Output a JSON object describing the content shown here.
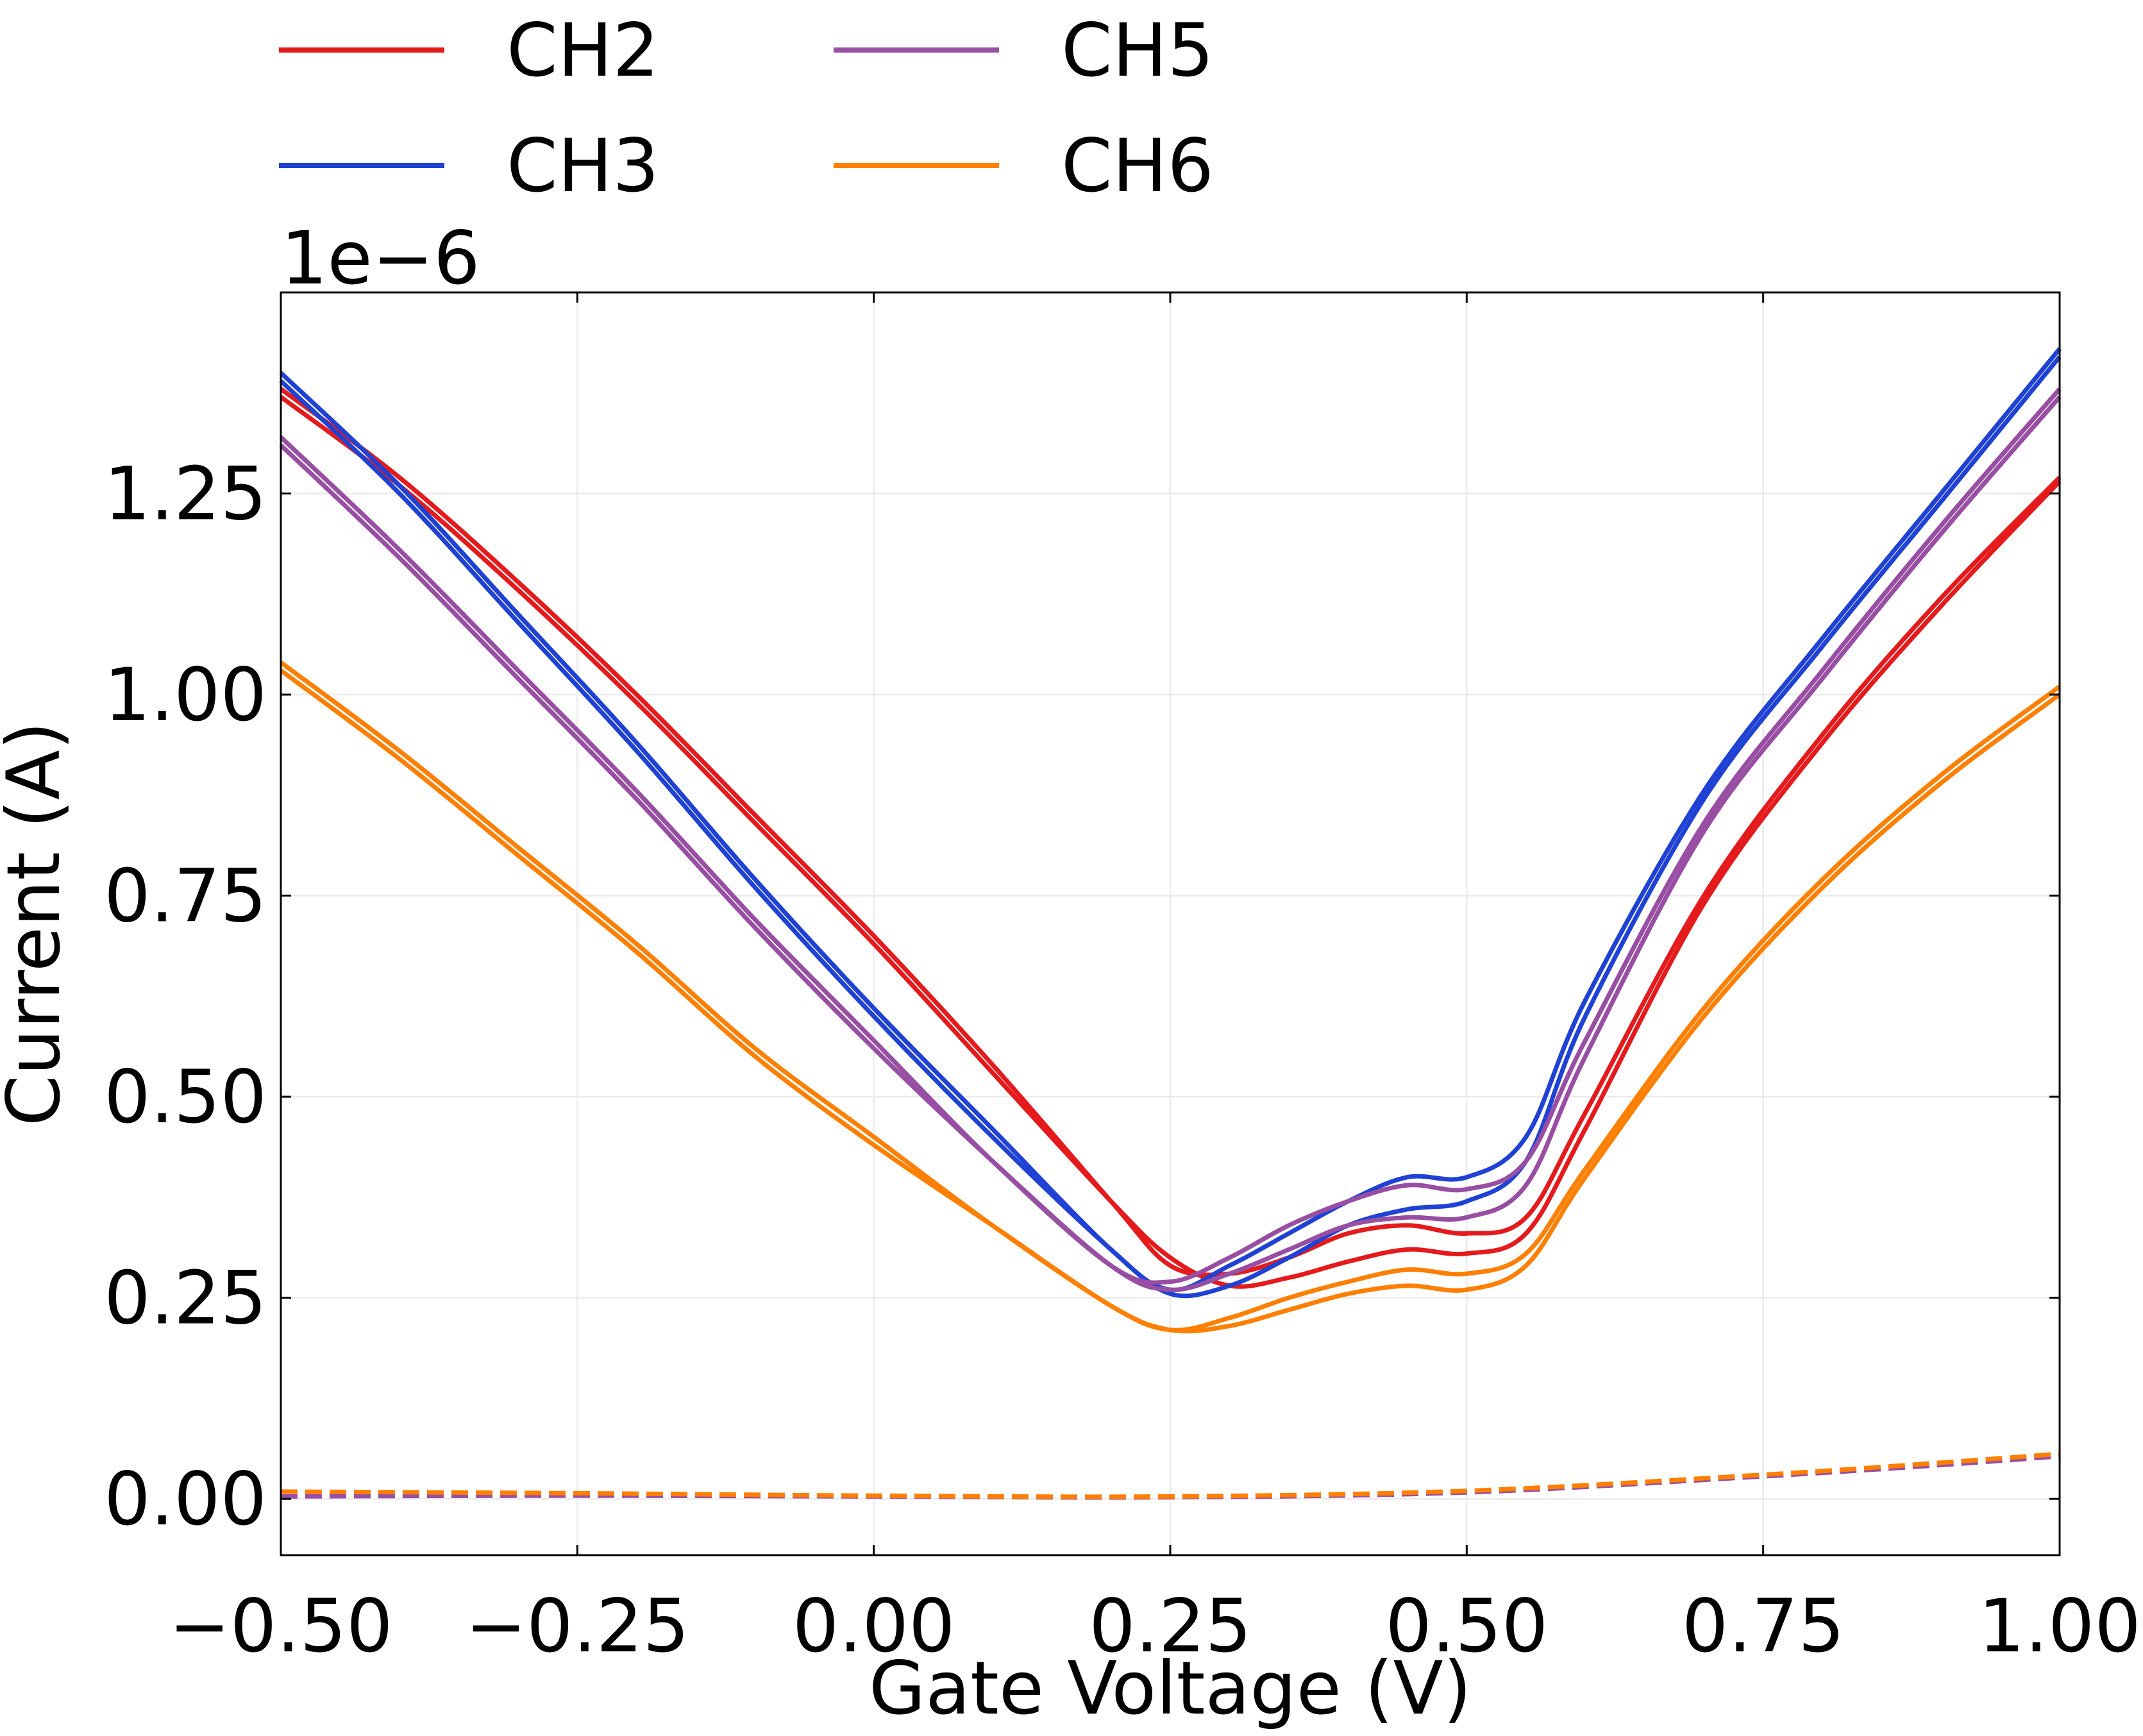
{
  "chart_data": {
    "type": "line",
    "title": "",
    "xlabel": "Gate Voltage (V)",
    "ylabel": "Current (A)",
    "y_offset_label": "1e−6",
    "xlim": [
      -0.5,
      1.0
    ],
    "ylim": [
      -0.07,
      1.5
    ],
    "x_ticks": [
      -0.5,
      -0.25,
      0.0,
      0.25,
      0.5,
      0.75,
      1.0
    ],
    "x_tick_labels": [
      "−0.50",
      "−0.25",
      "0.00",
      "0.25",
      "0.50",
      "0.75",
      "1.00"
    ],
    "y_ticks": [
      0.0,
      0.25,
      0.5,
      0.75,
      1.0,
      1.25
    ],
    "y_tick_labels": [
      "0.00",
      "0.25",
      "0.50",
      "0.75",
      "1.00",
      "1.25"
    ],
    "grid": true,
    "legend": {
      "placement": "top-left, above plot",
      "columns": 2,
      "entries": [
        "CH2",
        "CH3",
        "CH5",
        "CH6"
      ]
    },
    "series": [
      {
        "name": "CH2",
        "color": "#e41a1c",
        "forward": [
          [
            -0.5,
            1.37
          ],
          [
            -0.4,
            1.26
          ],
          [
            -0.3,
            1.13
          ],
          [
            -0.2,
            0.99
          ],
          [
            -0.1,
            0.84
          ],
          [
            0.0,
            0.69
          ],
          [
            0.1,
            0.53
          ],
          [
            0.2,
            0.37
          ],
          [
            0.25,
            0.3
          ],
          [
            0.3,
            0.265
          ],
          [
            0.35,
            0.275
          ],
          [
            0.4,
            0.295
          ],
          [
            0.45,
            0.31
          ],
          [
            0.5,
            0.305
          ],
          [
            0.55,
            0.33
          ],
          [
            0.6,
            0.46
          ],
          [
            0.7,
            0.74
          ],
          [
            0.8,
            0.94
          ],
          [
            0.9,
            1.11
          ],
          [
            1.0,
            1.265
          ]
        ],
        "reverse": [
          [
            -0.5,
            1.38
          ],
          [
            -0.4,
            1.27
          ],
          [
            -0.3,
            1.14
          ],
          [
            -0.2,
            1.0
          ],
          [
            -0.1,
            0.85
          ],
          [
            0.0,
            0.7
          ],
          [
            0.1,
            0.54
          ],
          [
            0.2,
            0.37
          ],
          [
            0.25,
            0.29
          ],
          [
            0.3,
            0.28
          ],
          [
            0.35,
            0.3
          ],
          [
            0.4,
            0.33
          ],
          [
            0.45,
            0.34
          ],
          [
            0.5,
            0.33
          ],
          [
            0.55,
            0.35
          ],
          [
            0.6,
            0.48
          ],
          [
            0.7,
            0.75
          ],
          [
            0.8,
            0.95
          ],
          [
            0.9,
            1.12
          ],
          [
            1.0,
            1.27
          ]
        ]
      },
      {
        "name": "CH3",
        "color": "#1f42d4",
        "forward": [
          [
            -0.5,
            1.39
          ],
          [
            -0.4,
            1.25
          ],
          [
            -0.3,
            1.09
          ],
          [
            -0.2,
            0.93
          ],
          [
            -0.1,
            0.76
          ],
          [
            0.0,
            0.6
          ],
          [
            0.1,
            0.45
          ],
          [
            0.2,
            0.31
          ],
          [
            0.25,
            0.255
          ],
          [
            0.3,
            0.265
          ],
          [
            0.35,
            0.3
          ],
          [
            0.4,
            0.34
          ],
          [
            0.45,
            0.36
          ],
          [
            0.5,
            0.37
          ],
          [
            0.55,
            0.42
          ],
          [
            0.6,
            0.6
          ],
          [
            0.7,
            0.87
          ],
          [
            0.8,
            1.06
          ],
          [
            0.9,
            1.24
          ],
          [
            1.0,
            1.42
          ]
        ],
        "reverse": [
          [
            -0.5,
            1.4
          ],
          [
            -0.4,
            1.26
          ],
          [
            -0.3,
            1.1
          ],
          [
            -0.2,
            0.94
          ],
          [
            -0.1,
            0.77
          ],
          [
            0.0,
            0.61
          ],
          [
            0.1,
            0.46
          ],
          [
            0.2,
            0.31
          ],
          [
            0.25,
            0.26
          ],
          [
            0.3,
            0.29
          ],
          [
            0.35,
            0.33
          ],
          [
            0.4,
            0.37
          ],
          [
            0.45,
            0.4
          ],
          [
            0.5,
            0.4
          ],
          [
            0.55,
            0.45
          ],
          [
            0.6,
            0.62
          ],
          [
            0.7,
            0.88
          ],
          [
            0.8,
            1.07
          ],
          [
            0.9,
            1.25
          ],
          [
            1.0,
            1.43
          ]
        ]
      },
      {
        "name": "CH5",
        "color": "#984ea3",
        "forward": [
          [
            -0.5,
            1.31
          ],
          [
            -0.4,
            1.17
          ],
          [
            -0.3,
            1.02
          ],
          [
            -0.2,
            0.87
          ],
          [
            -0.1,
            0.71
          ],
          [
            0.0,
            0.56
          ],
          [
            0.1,
            0.42
          ],
          [
            0.2,
            0.29
          ],
          [
            0.25,
            0.26
          ],
          [
            0.3,
            0.28
          ],
          [
            0.35,
            0.31
          ],
          [
            0.4,
            0.34
          ],
          [
            0.45,
            0.35
          ],
          [
            0.5,
            0.35
          ],
          [
            0.55,
            0.39
          ],
          [
            0.6,
            0.55
          ],
          [
            0.7,
            0.83
          ],
          [
            0.8,
            1.02
          ],
          [
            0.9,
            1.2
          ],
          [
            1.0,
            1.37
          ]
        ],
        "reverse": [
          [
            -0.5,
            1.32
          ],
          [
            -0.4,
            1.18
          ],
          [
            -0.3,
            1.03
          ],
          [
            -0.2,
            0.88
          ],
          [
            -0.1,
            0.72
          ],
          [
            0.0,
            0.57
          ],
          [
            0.1,
            0.42
          ],
          [
            0.2,
            0.29
          ],
          [
            0.25,
            0.27
          ],
          [
            0.3,
            0.3
          ],
          [
            0.35,
            0.34
          ],
          [
            0.4,
            0.37
          ],
          [
            0.45,
            0.39
          ],
          [
            0.5,
            0.385
          ],
          [
            0.55,
            0.42
          ],
          [
            0.6,
            0.57
          ],
          [
            0.7,
            0.84
          ],
          [
            0.8,
            1.03
          ],
          [
            0.9,
            1.21
          ],
          [
            1.0,
            1.38
          ]
        ]
      },
      {
        "name": "CH6",
        "color": "#ff7f00",
        "forward": [
          [
            -0.5,
            1.03
          ],
          [
            -0.4,
            0.92
          ],
          [
            -0.3,
            0.8
          ],
          [
            -0.2,
            0.68
          ],
          [
            -0.1,
            0.55
          ],
          [
            0.0,
            0.44
          ],
          [
            0.1,
            0.34
          ],
          [
            0.2,
            0.24
          ],
          [
            0.25,
            0.21
          ],
          [
            0.3,
            0.215
          ],
          [
            0.35,
            0.235
          ],
          [
            0.4,
            0.255
          ],
          [
            0.45,
            0.265
          ],
          [
            0.5,
            0.26
          ],
          [
            0.55,
            0.29
          ],
          [
            0.6,
            0.4
          ],
          [
            0.7,
            0.6
          ],
          [
            0.8,
            0.76
          ],
          [
            0.9,
            0.89
          ],
          [
            1.0,
            1.0
          ]
        ],
        "reverse": [
          [
            -0.5,
            1.04
          ],
          [
            -0.4,
            0.93
          ],
          [
            -0.3,
            0.81
          ],
          [
            -0.2,
            0.69
          ],
          [
            -0.1,
            0.56
          ],
          [
            0.0,
            0.45
          ],
          [
            0.1,
            0.34
          ],
          [
            0.2,
            0.24
          ],
          [
            0.25,
            0.21
          ],
          [
            0.3,
            0.225
          ],
          [
            0.35,
            0.25
          ],
          [
            0.4,
            0.27
          ],
          [
            0.45,
            0.285
          ],
          [
            0.5,
            0.28
          ],
          [
            0.55,
            0.305
          ],
          [
            0.6,
            0.41
          ],
          [
            0.7,
            0.61
          ],
          [
            0.8,
            0.77
          ],
          [
            0.9,
            0.9
          ],
          [
            1.0,
            1.01
          ]
        ]
      }
    ],
    "leakage_series": [
      {
        "name": "",
        "color": "#984ea3",
        "style": "dashed",
        "points": [
          [
            -0.5,
            0.003
          ],
          [
            -0.25,
            0.004
          ],
          [
            0.0,
            0.003
          ],
          [
            0.25,
            0.002
          ],
          [
            0.5,
            0.008
          ],
          [
            0.75,
            0.028
          ],
          [
            0.9,
            0.042
          ],
          [
            1.0,
            0.053
          ]
        ]
      },
      {
        "name": "",
        "color": "#ff7f00",
        "style": "dashed",
        "points": [
          [
            -0.5,
            0.009
          ],
          [
            -0.25,
            0.007
          ],
          [
            0.0,
            0.004
          ],
          [
            0.25,
            0.003
          ],
          [
            0.5,
            0.01
          ],
          [
            0.75,
            0.03
          ],
          [
            0.9,
            0.045
          ],
          [
            1.0,
            0.056
          ]
        ]
      }
    ]
  }
}
